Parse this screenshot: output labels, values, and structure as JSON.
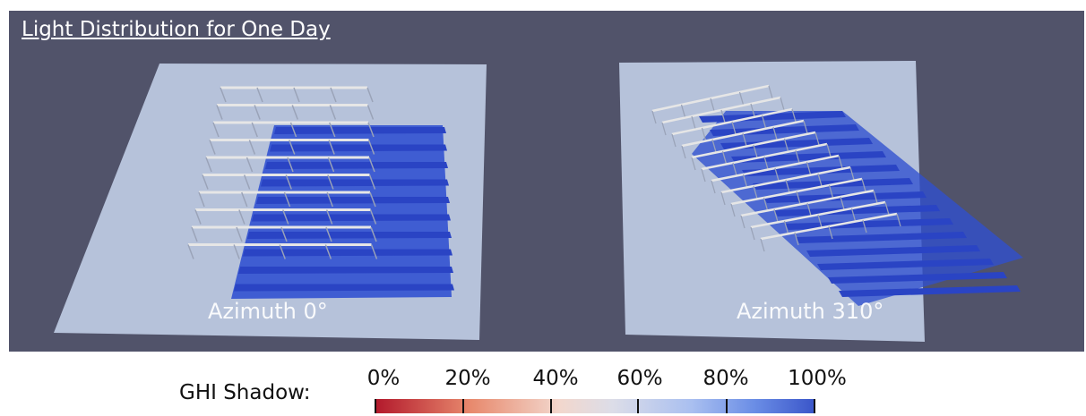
{
  "scene": {
    "title": "Light Distribution for One Day",
    "background_color": "#51536a",
    "ground_color": "#b6c2da",
    "shadow_color": "#2f4fd0",
    "rack_color": "#e6e6e6",
    "panels": [
      {
        "label": "Azimuth 0°"
      },
      {
        "label": "Azimuth 310°"
      }
    ]
  },
  "legend": {
    "label": "GHI Shadow:",
    "ticks": [
      "0%",
      "20%",
      "40%",
      "60%",
      "80%",
      "100%"
    ],
    "gradient": [
      "#b2182b",
      "#e88a6e",
      "#dcdde8",
      "#6b8ee6",
      "#3a55c9"
    ]
  }
}
